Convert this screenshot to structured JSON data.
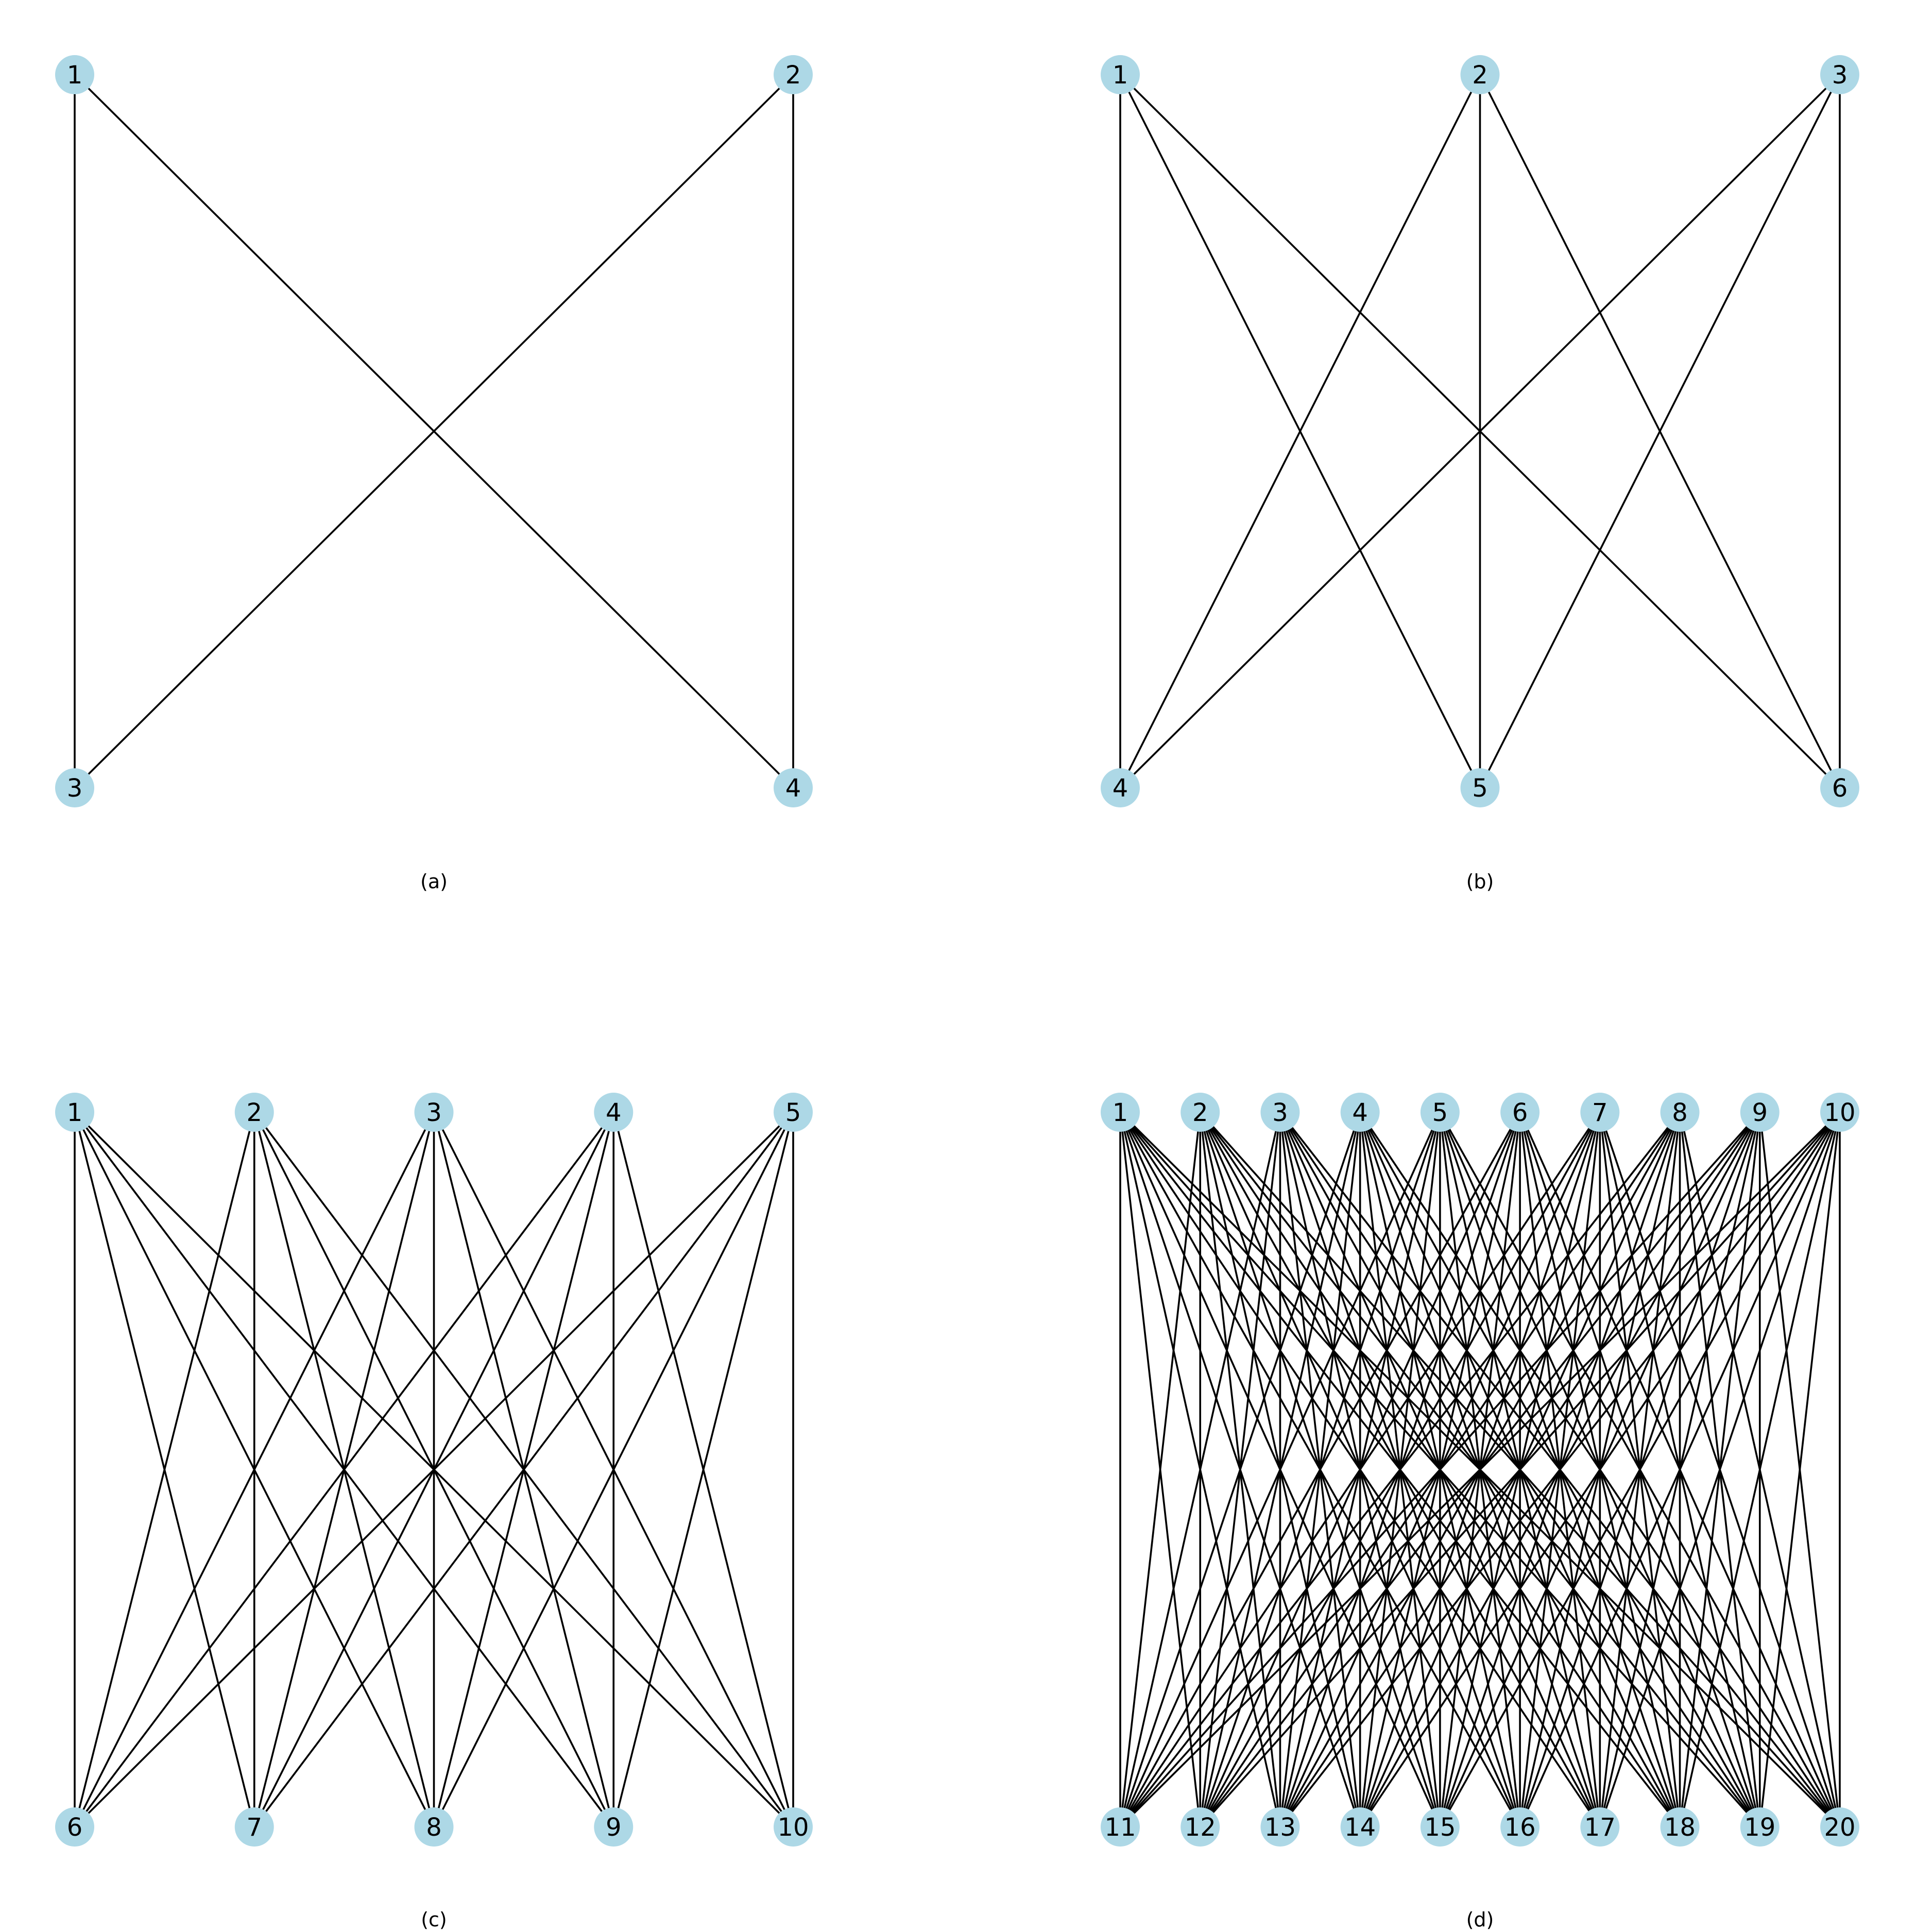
{
  "style": {
    "node_color": "#add8e6",
    "edge_color": "#000000",
    "text_color": "#000000",
    "background": "#ffffff"
  },
  "panels": [
    {
      "id": "a",
      "caption": "(a)",
      "graph": "complete bipartite graph K2,2",
      "top_nodes": [
        "1",
        "2"
      ],
      "bottom_nodes": [
        "3",
        "4"
      ],
      "edges": "all top-bottom pairs"
    },
    {
      "id": "b",
      "caption": "(b)",
      "graph": "complete bipartite graph K3,3",
      "top_nodes": [
        "1",
        "2",
        "3"
      ],
      "bottom_nodes": [
        "4",
        "5",
        "6"
      ],
      "edges": "all top-bottom pairs"
    },
    {
      "id": "c",
      "caption": "(c)",
      "graph": "complete bipartite graph K5,5",
      "top_nodes": [
        "1",
        "2",
        "3",
        "4",
        "5"
      ],
      "bottom_nodes": [
        "6",
        "7",
        "8",
        "9",
        "10"
      ],
      "edges": "all top-bottom pairs"
    },
    {
      "id": "d",
      "caption": "(d)",
      "graph": "complete bipartite graph K10,10",
      "top_nodes": [
        "1",
        "2",
        "3",
        "4",
        "5",
        "6",
        "7",
        "8",
        "9",
        "10"
      ],
      "bottom_nodes": [
        "11",
        "12",
        "13",
        "14",
        "15",
        "16",
        "17",
        "18",
        "19",
        "20"
      ],
      "edges": "all top-bottom pairs"
    }
  ]
}
